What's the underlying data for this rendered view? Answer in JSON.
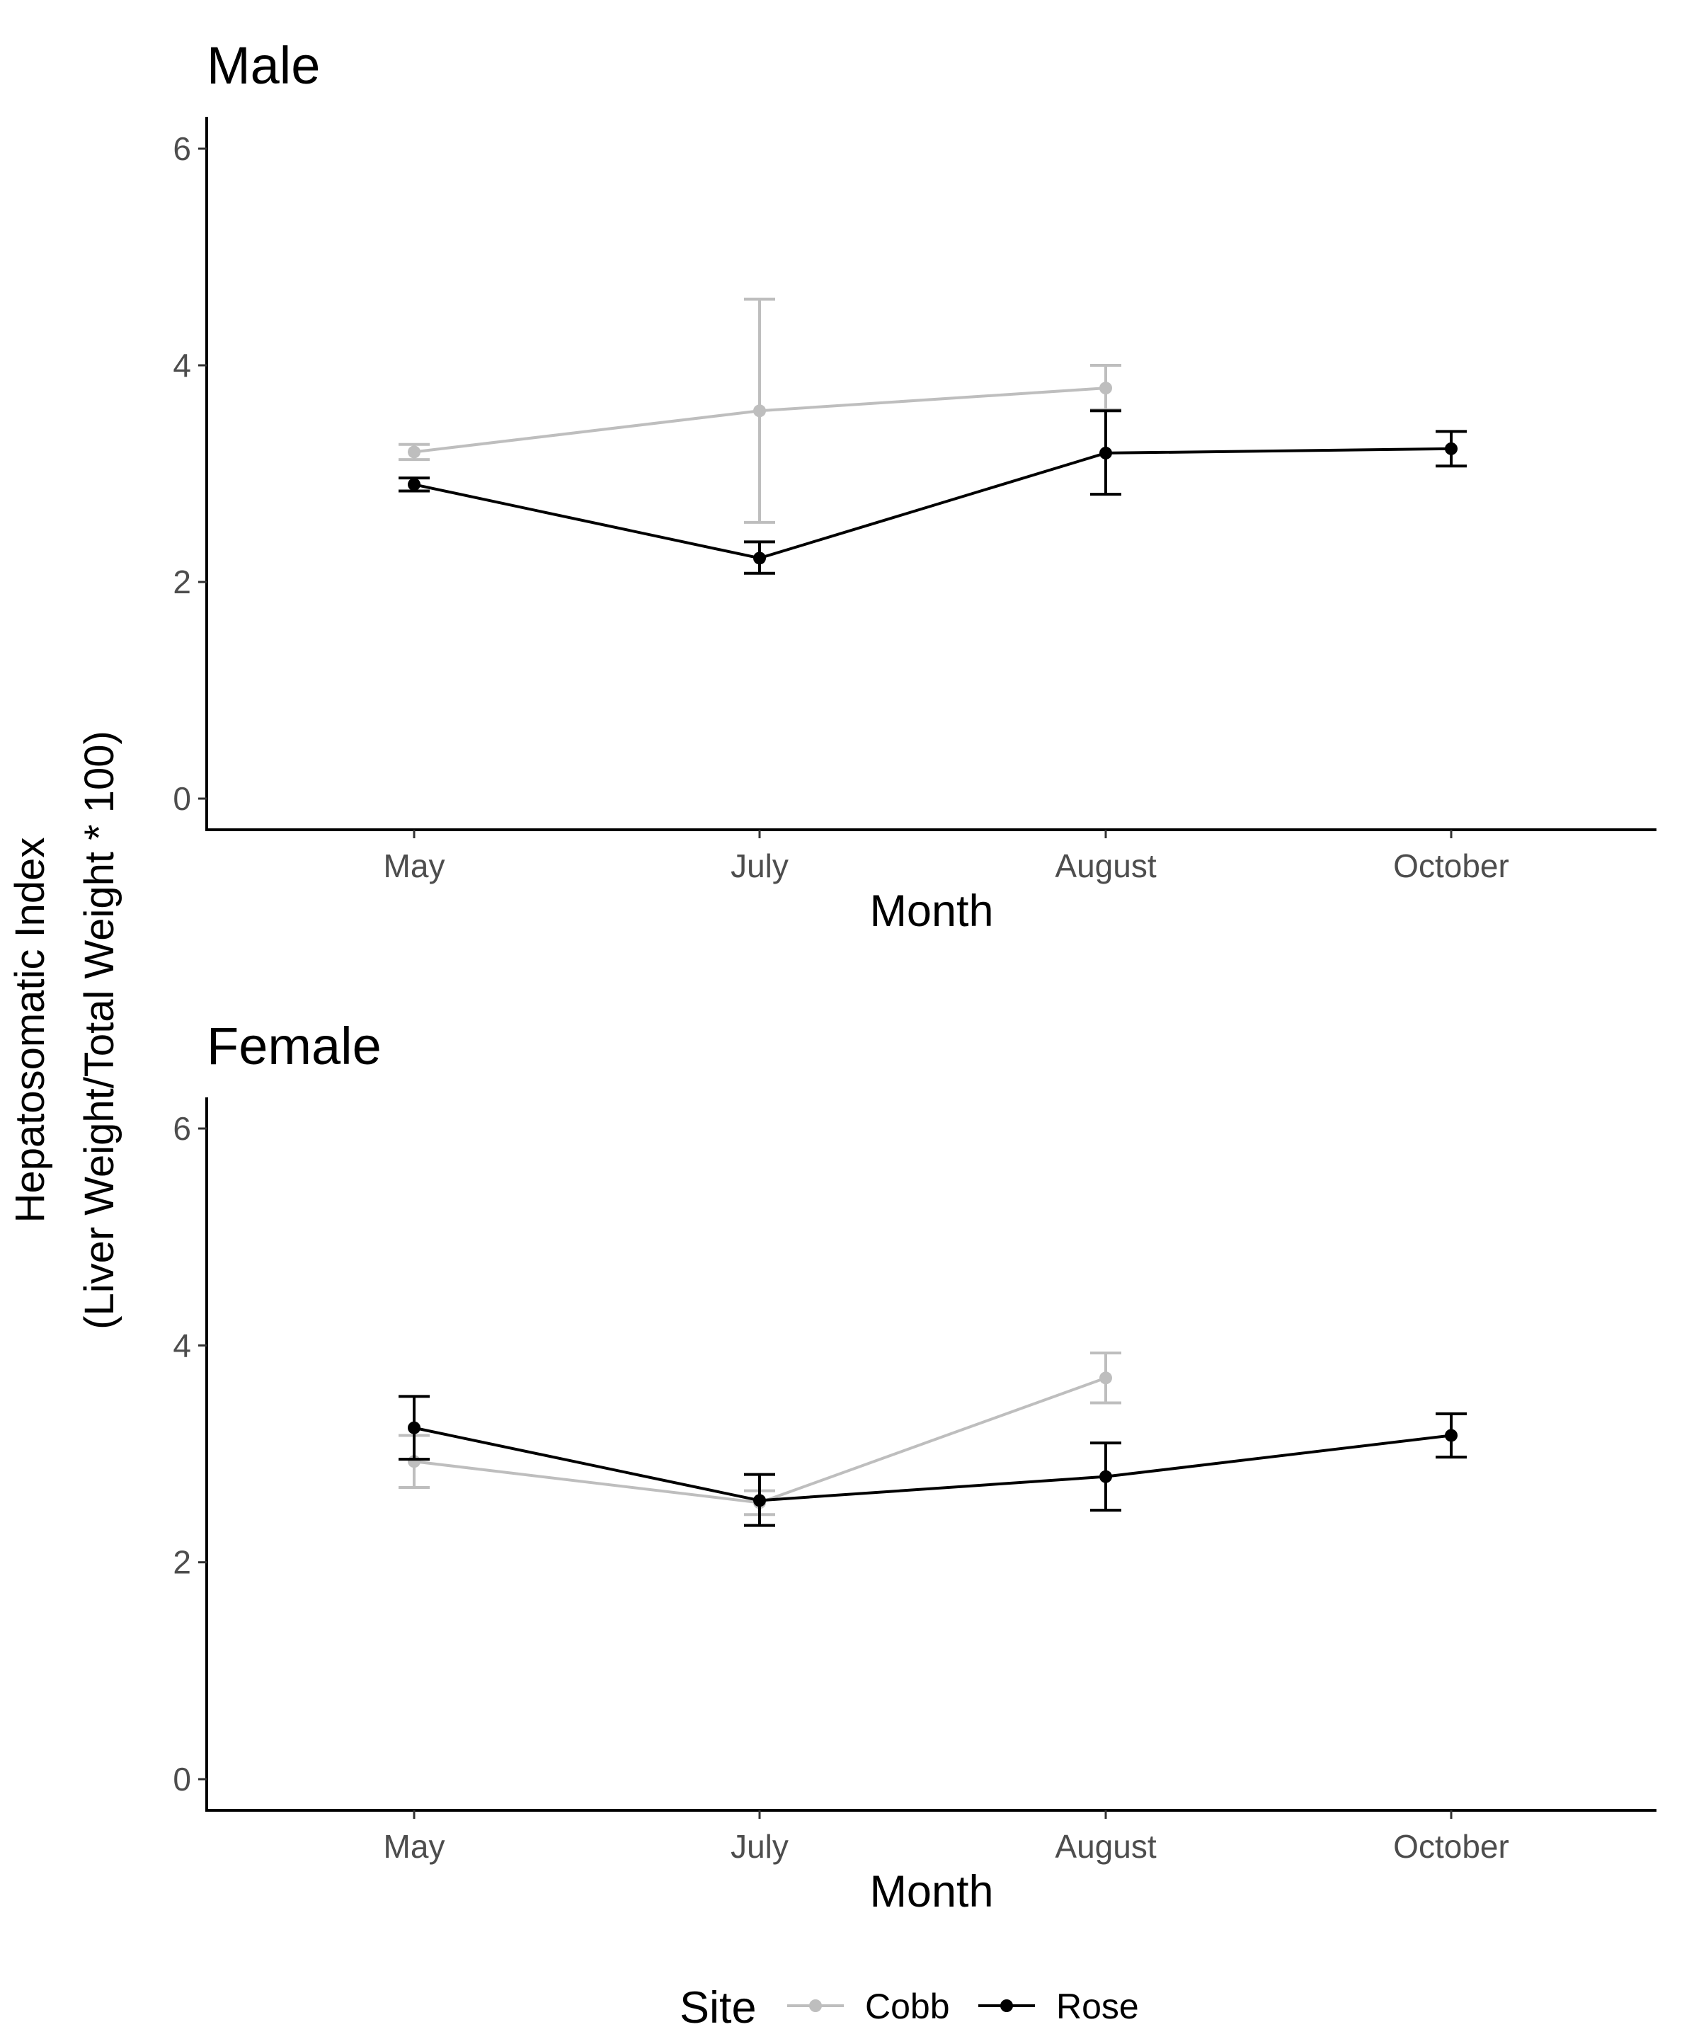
{
  "figure": {
    "ylabel_line1": "Hepatosomatic Index",
    "ylabel_line2": "(Liver Weight/Total Weight * 100)",
    "legend": {
      "title": "Site",
      "entries": [
        {
          "name": "Cobb",
          "color": "#bebebe"
        },
        {
          "name": "Rose",
          "color": "#000000"
        }
      ]
    }
  },
  "chart_data": [
    {
      "type": "line",
      "title": "Male",
      "xlabel": "Month",
      "ylabel": "Hepatosomatic Index (Liver Weight/Total Weight * 100)",
      "categories": [
        "May",
        "July",
        "August",
        "October"
      ],
      "ylim": [
        0,
        6
      ],
      "yticks": [
        0,
        2,
        4,
        6
      ],
      "grid": false,
      "legend_position": "bottom",
      "series": [
        {
          "name": "Cobb",
          "color": "#bebebe",
          "points": [
            {
              "x": "May",
              "y": 3.2,
              "lo": 3.13,
              "hi": 3.27
            },
            {
              "x": "July",
              "y": 3.58,
              "lo": 2.55,
              "hi": 4.61
            },
            {
              "x": "August",
              "y": 3.79,
              "lo": 3.59,
              "hi": 4.0
            }
          ]
        },
        {
          "name": "Rose",
          "color": "#000000",
          "points": [
            {
              "x": "May",
              "y": 2.9,
              "lo": 2.84,
              "hi": 2.96
            },
            {
              "x": "July",
              "y": 2.22,
              "lo": 2.08,
              "hi": 2.37
            },
            {
              "x": "August",
              "y": 3.19,
              "lo": 2.81,
              "hi": 3.58
            },
            {
              "x": "October",
              "y": 3.23,
              "lo": 3.07,
              "hi": 3.39
            }
          ]
        }
      ]
    },
    {
      "type": "line",
      "title": "Female",
      "xlabel": "Month",
      "ylabel": "Hepatosomatic Index (Liver Weight/Total Weight * 100)",
      "categories": [
        "May",
        "July",
        "August",
        "October"
      ],
      "ylim": [
        0,
        6
      ],
      "yticks": [
        0,
        2,
        4,
        6
      ],
      "grid": false,
      "legend_position": "bottom",
      "series": [
        {
          "name": "Cobb",
          "color": "#bebebe",
          "points": [
            {
              "x": "May",
              "y": 2.93,
              "lo": 2.69,
              "hi": 3.17
            },
            {
              "x": "July",
              "y": 2.55,
              "lo": 2.44,
              "hi": 2.66
            },
            {
              "x": "August",
              "y": 3.7,
              "lo": 3.47,
              "hi": 3.93
            }
          ]
        },
        {
          "name": "Rose",
          "color": "#000000",
          "points": [
            {
              "x": "May",
              "y": 3.24,
              "lo": 2.95,
              "hi": 3.53
            },
            {
              "x": "July",
              "y": 2.57,
              "lo": 2.34,
              "hi": 2.81
            },
            {
              "x": "August",
              "y": 2.79,
              "lo": 2.48,
              "hi": 3.1
            },
            {
              "x": "October",
              "y": 3.17,
              "lo": 2.97,
              "hi": 3.37
            }
          ]
        }
      ]
    }
  ]
}
